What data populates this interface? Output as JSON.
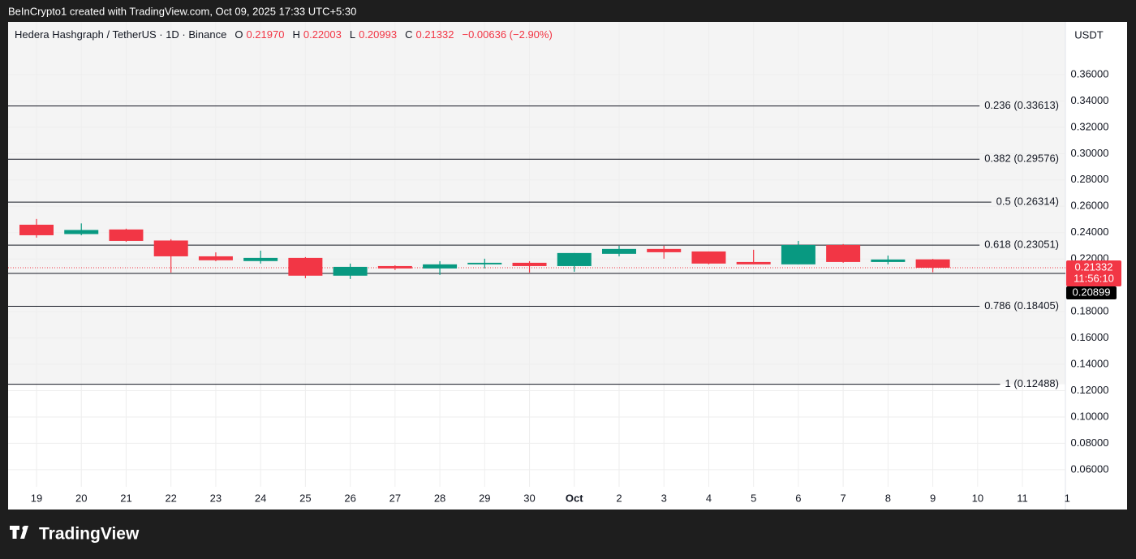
{
  "header": {
    "text": "BeInCrypto1 created with TradingView.com, Oct 09, 2025 17:33 UTC+5:30"
  },
  "chart_data": {
    "type": "candlestick",
    "title": "Hedera Hashgraph / TetherUS · 1D · Binance",
    "legend": {
      "o_key": "O",
      "o": "0.21970",
      "h_key": "H",
      "h": "0.22003",
      "l_key": "L",
      "l": "0.20993",
      "c_key": "C",
      "c": "0.21332",
      "change": "−0.00636 (−2.90%)"
    },
    "currency": "USDT",
    "categories": [
      "19",
      "20",
      "21",
      "22",
      "23",
      "24",
      "25",
      "26",
      "27",
      "28",
      "29",
      "30",
      "Oct",
      "2",
      "3",
      "4",
      "5",
      "6",
      "7",
      "8",
      "9",
      "10",
      "11",
      "1"
    ],
    "open": [
      0.246,
      0.2389,
      0.2424,
      0.234,
      0.222,
      0.2184,
      0.2208,
      0.2073,
      0.2146,
      0.2128,
      0.2159,
      0.2171,
      0.2146,
      0.2239,
      0.2276,
      0.2257,
      0.2177,
      0.2159,
      0.2306,
      0.2177,
      0.2197,
      null,
      null,
      null
    ],
    "high": [
      0.2504,
      0.247,
      0.243,
      0.235,
      0.225,
      0.2263,
      0.2214,
      0.2165,
      0.2152,
      0.2183,
      0.2202,
      0.2183,
      0.2245,
      0.23,
      0.23,
      0.2257,
      0.227,
      0.2337,
      0.2313,
      0.2226,
      0.22003,
      null,
      null,
      null
    ],
    "low": [
      0.2362,
      0.238,
      0.233,
      0.2097,
      0.2183,
      0.2165,
      0.2054,
      0.2048,
      0.2116,
      0.2079,
      0.2128,
      0.2097,
      0.2103,
      0.222,
      0.2202,
      0.2159,
      0.2159,
      0.2159,
      0.2171,
      0.2159,
      0.20993,
      null,
      null,
      null
    ],
    "close": [
      0.238,
      0.242,
      0.2337,
      0.222,
      0.219,
      0.2208,
      0.2073,
      0.214,
      0.2128,
      0.2159,
      0.2171,
      0.2146,
      0.2245,
      0.2276,
      0.2251,
      0.2165,
      0.2159,
      0.2306,
      0.2177,
      0.2196,
      0.21332,
      null,
      null,
      null
    ],
    "up_color": "#089981",
    "down_color": "#f23645",
    "ylim": [
      0.047,
      0.4
    ],
    "yticks": [
      {
        "value": 0.06,
        "label": "0.06000"
      },
      {
        "value": 0.08,
        "label": "0.08000"
      },
      {
        "value": 0.1,
        "label": "0.10000"
      },
      {
        "value": 0.12,
        "label": "0.12000"
      },
      {
        "value": 0.14,
        "label": "0.14000"
      },
      {
        "value": 0.16,
        "label": "0.16000"
      },
      {
        "value": 0.18,
        "label": "0.18000"
      },
      {
        "value": 0.22,
        "label": "0.22000"
      },
      {
        "value": 0.24,
        "label": "0.24000"
      },
      {
        "value": 0.26,
        "label": "0.26000"
      },
      {
        "value": 0.28,
        "label": "0.28000"
      },
      {
        "value": 0.3,
        "label": "0.30000"
      },
      {
        "value": 0.32,
        "label": "0.32000"
      },
      {
        "value": 0.34,
        "label": "0.34000"
      },
      {
        "value": 0.36,
        "label": "0.36000"
      }
    ],
    "grid": true,
    "fib_levels": [
      {
        "value": 0.33613,
        "label": "0.236 (0.33613)"
      },
      {
        "value": 0.29576,
        "label": "0.382 (0.29576)"
      },
      {
        "value": 0.26314,
        "label": "0.5 (0.26314)"
      },
      {
        "value": 0.23051,
        "label": "0.618 (0.23051)"
      },
      {
        "value": 0.18405,
        "label": "0.786 (0.18405)"
      },
      {
        "value": 0.12488,
        "label": "1 (0.12488)"
      }
    ],
    "last_price": {
      "value": 0.21332,
      "label": "0.21332"
    },
    "countdown": "11:56:10",
    "price_line": {
      "value": 0.20899,
      "label": "0.20899"
    }
  },
  "footer": {
    "logo": "TradingView"
  }
}
